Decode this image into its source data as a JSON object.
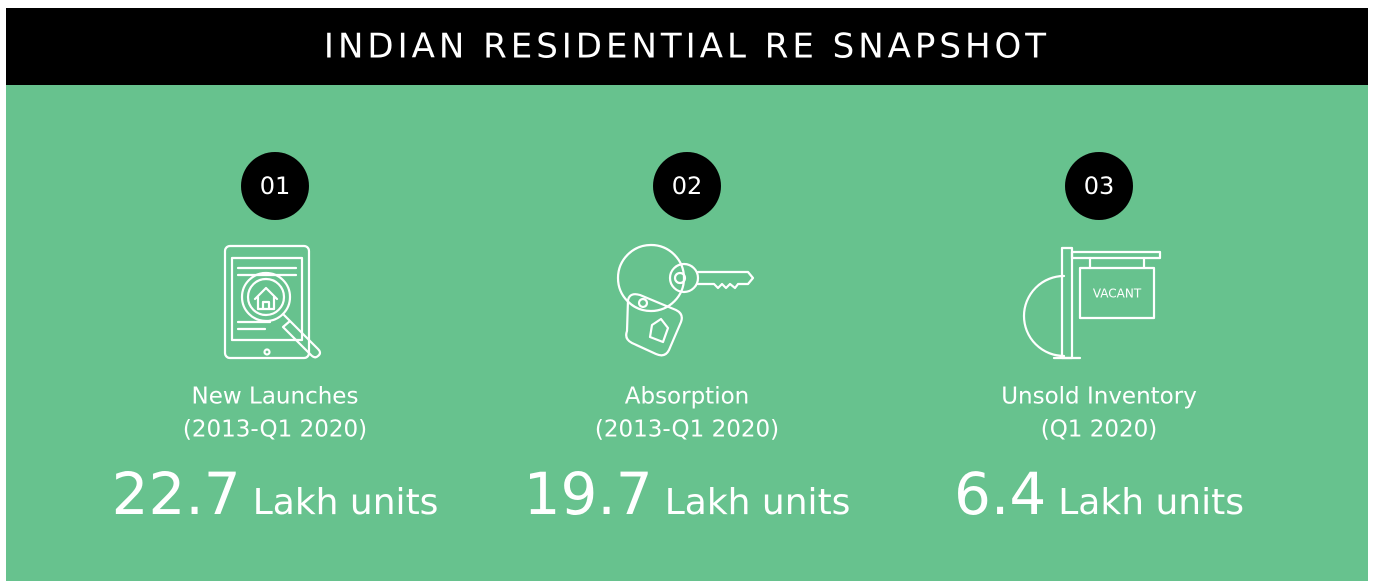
{
  "header": {
    "title": "INDIAN RESIDENTIAL RE SNAPSHOT"
  },
  "items": [
    {
      "number": "01",
      "label": "New Launches",
      "period": "(2013-Q1 2020)",
      "value": "22.7",
      "unit": "Lakh units"
    },
    {
      "number": "02",
      "label": "Absorption",
      "period": "(2013-Q1 2020)",
      "value": "19.7",
      "unit": "Lakh units"
    },
    {
      "number": "03",
      "label": "Unsold Inventory",
      "period": "(Q1 2020)",
      "value": "6.4",
      "unit": "Lakh units",
      "sign": "VACANT"
    }
  ]
}
